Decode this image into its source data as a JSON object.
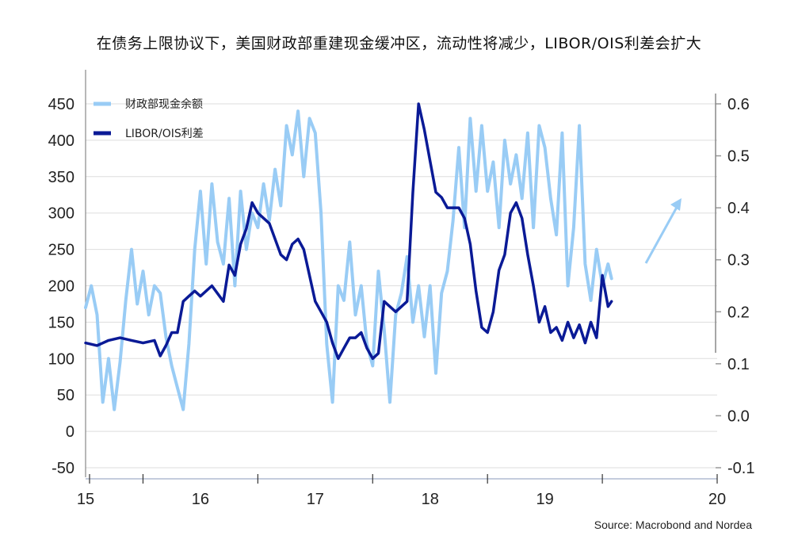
{
  "chart_data": {
    "type": "line",
    "title": "在债务上限协议下，美国财政部重建现金缓冲区，流动性将减少，LIBOR/OIS利差会扩大",
    "source": "Source: Macrobond and Nordea",
    "x_ticks": [
      "15",
      "16",
      "17",
      "18",
      "19",
      "20"
    ],
    "xlim": [
      2014.5,
      2020.0
    ],
    "y_left_ticks": [
      "450",
      "400",
      "350",
      "300",
      "250",
      "200",
      "150",
      "100",
      "50",
      "0",
      "-50"
    ],
    "ylim_left": [
      -50,
      450
    ],
    "y_right_ticks": [
      "0.6",
      "0.5",
      "0.4",
      "0.3",
      "0.2",
      "0.1",
      "0.0",
      "-0.1"
    ],
    "ylim_right": [
      -0.1,
      0.6
    ],
    "grid": true,
    "legend_position": "top-left",
    "colors": {
      "cash": "#99ccf5",
      "spread": "#0a1a96",
      "arrow": "#99ccf5",
      "grid": "#dddddd"
    },
    "series": [
      {
        "name": "财政部现金余额",
        "axis": "left",
        "x": [
          2014.5,
          2014.55,
          2014.6,
          2014.65,
          2014.7,
          2014.75,
          2014.8,
          2014.85,
          2014.9,
          2014.95,
          2015.0,
          2015.05,
          2015.1,
          2015.15,
          2015.2,
          2015.25,
          2015.3,
          2015.35,
          2015.4,
          2015.45,
          2015.5,
          2015.55,
          2015.6,
          2015.65,
          2015.7,
          2015.75,
          2015.8,
          2015.85,
          2015.9,
          2015.95,
          2016.0,
          2016.05,
          2016.1,
          2016.15,
          2016.2,
          2016.25,
          2016.3,
          2016.35,
          2016.4,
          2016.45,
          2016.5,
          2016.55,
          2016.6,
          2016.65,
          2016.7,
          2016.75,
          2016.8,
          2016.85,
          2016.9,
          2016.95,
          2017.0,
          2017.05,
          2017.1,
          2017.15,
          2017.2,
          2017.25,
          2017.3,
          2017.35,
          2017.4,
          2017.45,
          2017.5,
          2017.55,
          2017.6,
          2017.65,
          2017.7,
          2017.75,
          2017.8,
          2017.85,
          2017.9,
          2017.95,
          2018.0,
          2018.05,
          2018.1,
          2018.15,
          2018.2,
          2018.25,
          2018.3,
          2018.35,
          2018.4,
          2018.45,
          2018.5,
          2018.55,
          2018.6,
          2018.65,
          2018.7,
          2018.75,
          2018.8,
          2018.85,
          2018.9,
          2018.95,
          2019.0,
          2019.05,
          2019.08
        ],
        "values": [
          170,
          200,
          160,
          40,
          100,
          30,
          95,
          180,
          250,
          175,
          220,
          160,
          200,
          190,
          130,
          90,
          60,
          30,
          120,
          250,
          330,
          230,
          340,
          260,
          230,
          320,
          200,
          330,
          250,
          300,
          280,
          340,
          290,
          360,
          310,
          420,
          380,
          440,
          350,
          430,
          410,
          300,
          120,
          40,
          200,
          180,
          260,
          160,
          200,
          120,
          90,
          220,
          140,
          40,
          160,
          190,
          240,
          150,
          200,
          130,
          200,
          80,
          190,
          220,
          290,
          390,
          280,
          430,
          330,
          420,
          330,
          370,
          280,
          400,
          340,
          380,
          320,
          410,
          280,
          420,
          390,
          320,
          270,
          410,
          200,
          280,
          420,
          230,
          180,
          250,
          200,
          230,
          210
        ],
        "values_note": "approximate, read from chart"
      },
      {
        "name": "LIBOR/OIS利差",
        "axis": "right",
        "x": [
          2014.5,
          2014.6,
          2014.7,
          2014.8,
          2014.9,
          2015.0,
          2015.1,
          2015.15,
          2015.2,
          2015.25,
          2015.3,
          2015.35,
          2015.4,
          2015.45,
          2015.5,
          2015.6,
          2015.7,
          2015.75,
          2015.8,
          2015.85,
          2015.9,
          2015.95,
          2016.0,
          2016.1,
          2016.2,
          2016.25,
          2016.3,
          2016.35,
          2016.4,
          2016.5,
          2016.55,
          2016.6,
          2016.65,
          2016.7,
          2016.75,
          2016.8,
          2016.85,
          2016.9,
          2016.95,
          2017.0,
          2017.05,
          2017.1,
          2017.2,
          2017.3,
          2017.35,
          2017.4,
          2017.45,
          2017.5,
          2017.55,
          2017.6,
          2017.65,
          2017.7,
          2017.75,
          2017.8,
          2017.85,
          2017.9,
          2017.95,
          2018.0,
          2018.05,
          2018.1,
          2018.15,
          2018.2,
          2018.25,
          2018.3,
          2018.35,
          2018.4,
          2018.45,
          2018.5,
          2018.55,
          2018.6,
          2018.65,
          2018.7,
          2018.75,
          2018.8,
          2018.85,
          2018.9,
          2018.95,
          2019.0,
          2019.05,
          2019.08
        ],
        "values": [
          0.14,
          0.135,
          0.145,
          0.15,
          0.145,
          0.14,
          0.145,
          0.115,
          0.135,
          0.16,
          0.16,
          0.22,
          0.23,
          0.24,
          0.23,
          0.25,
          0.22,
          0.29,
          0.27,
          0.33,
          0.36,
          0.41,
          0.39,
          0.37,
          0.31,
          0.3,
          0.33,
          0.34,
          0.32,
          0.22,
          0.2,
          0.18,
          0.14,
          0.11,
          0.13,
          0.15,
          0.15,
          0.16,
          0.13,
          0.11,
          0.12,
          0.22,
          0.2,
          0.22,
          0.43,
          0.6,
          0.55,
          0.49,
          0.43,
          0.42,
          0.4,
          0.4,
          0.4,
          0.38,
          0.33,
          0.24,
          0.17,
          0.16,
          0.2,
          0.28,
          0.31,
          0.39,
          0.41,
          0.38,
          0.31,
          0.25,
          0.18,
          0.21,
          0.16,
          0.17,
          0.145,
          0.18,
          0.15,
          0.175,
          0.14,
          0.18,
          0.15,
          0.27,
          0.21,
          0.22
        ],
        "values_note": "approximate, read from chart"
      }
    ]
  }
}
